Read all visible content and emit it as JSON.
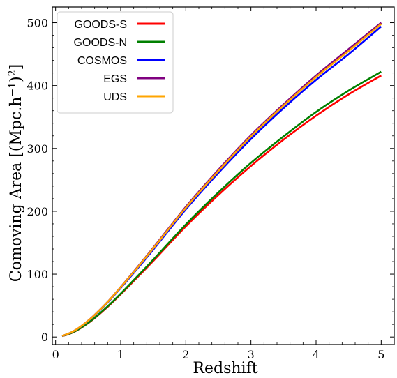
{
  "chart_data": {
    "type": "line",
    "xlabel": "Redshift",
    "ylabel": "Comoving Area [(Mpc.h",
    "ylabel_sup1": "−1",
    "ylabel_close": ")",
    "ylabel_sup2": "2",
    "ylabel_end": "]",
    "xlim": [
      -0.05,
      5.2
    ],
    "ylim": [
      -12,
      525
    ],
    "xticks": [
      "0",
      "1",
      "2",
      "3",
      "4",
      "5"
    ],
    "yticks": [
      "0",
      "100",
      "200",
      "300",
      "400",
      "500"
    ],
    "grid": false,
    "legend_position": "top-left",
    "x": [
      0.1,
      0.2,
      0.3,
      0.4,
      0.5,
      0.6,
      0.8,
      1.0,
      1.2,
      1.5,
      2.0,
      2.5,
      3.0,
      3.5,
      4.0,
      4.5,
      5.0
    ],
    "series": [
      {
        "name": "GOODS-S",
        "color": "#ff0000",
        "values": [
          1.5,
          4.5,
          9,
          15,
          22,
          30,
          48,
          68,
          89,
          121,
          176,
          226,
          272,
          314,
          352,
          386,
          416
        ]
      },
      {
        "name": "GOODS-N",
        "color": "#008000",
        "values": [
          1.5,
          4.6,
          9.2,
          15.3,
          22.4,
          30.5,
          48.8,
          69,
          90.5,
          123,
          179,
          230,
          277,
          319,
          358,
          392,
          422
        ]
      },
      {
        "name": "COSMOS",
        "color": "#0000ff",
        "values": [
          1.7,
          5.3,
          10.5,
          17.5,
          25.5,
          34.5,
          55,
          78,
          102,
          139,
          203,
          261,
          315,
          364,
          409,
          450,
          494
        ]
      },
      {
        "name": "EGS",
        "color": "#800080",
        "values": [
          1.7,
          5.4,
          10.7,
          17.8,
          26,
          35.2,
          56,
          79.5,
          104,
          142,
          207,
          266,
          321,
          370,
          416,
          458,
          500
        ]
      },
      {
        "name": "UDS",
        "color": "#ffa500",
        "values": [
          1.7,
          5.35,
          10.6,
          17.7,
          25.8,
          35,
          55.7,
          79,
          103.3,
          141,
          205.5,
          264,
          319,
          368,
          413.5,
          455,
          498
        ]
      }
    ]
  }
}
